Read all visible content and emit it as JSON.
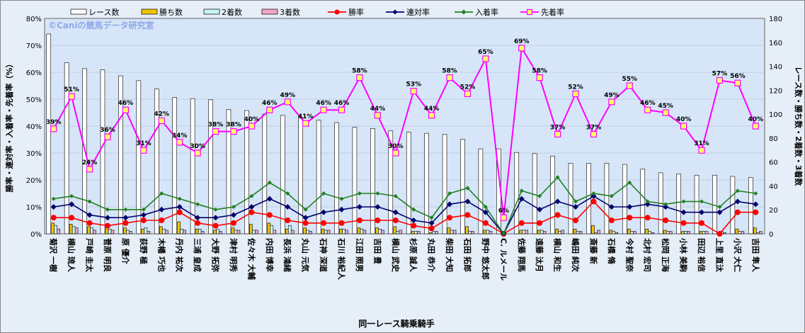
{
  "chart_data": {
    "type": "bar",
    "watermark": "©Caniの競馬データ研究室",
    "xlabel": "同一レース騎乗騎手",
    "ylabel_left": "勝率・連対率・入着率・先着率（%）",
    "ylabel_right": "レース数・勝ち数・2着数・3着数",
    "y_left_range": [
      0,
      80
    ],
    "y_left_ticks": [
      "0%",
      "10%",
      "20%",
      "30%",
      "40%",
      "50%",
      "60%",
      "70%",
      "80%"
    ],
    "y_right_range": [
      0,
      180
    ],
    "y_right_ticks": [
      "0",
      "20",
      "40",
      "60",
      "80",
      "100",
      "120",
      "140",
      "160",
      "180"
    ],
    "legend": [
      {
        "name": "レース数",
        "kind": "bar",
        "color": "#ffffff"
      },
      {
        "name": "勝ち数",
        "kind": "bar",
        "color": "#f2c400"
      },
      {
        "name": "2着数",
        "kind": "bar",
        "color": "#c8f4f4"
      },
      {
        "name": "3着数",
        "kind": "bar",
        "color": "#f4a6c8"
      },
      {
        "name": "勝率",
        "kind": "line",
        "color": "#ff0000"
      },
      {
        "name": "連対率",
        "kind": "line",
        "color": "#00006e"
      },
      {
        "name": "入着率",
        "kind": "line",
        "color": "#208020"
      },
      {
        "name": "先着率",
        "kind": "line",
        "color": "#ff00ff"
      }
    ],
    "categories": [
      "菊沢 一樹",
      "横山 琉人",
      "戸崎 圭太",
      "菅原 明良",
      "原 優介",
      "荻野 極",
      "木幡 巧也",
      "丹内 祐次",
      "三浦 皇成",
      "大野 拓弥",
      "津村 明秀",
      "佐々木 大輔",
      "内田 博幸",
      "長浜 鴻緒",
      "丸山 元気",
      "石神 深道",
      "石川 裕紀人",
      "江田 照男",
      "吉田 豊",
      "横山 武史",
      "杉原 誠人",
      "丸田 恭介",
      "柴田 大知",
      "石田 拓郎",
      "野中 悠太郎",
      "C. ルメール",
      "佐藤 翔馬",
      "遠藤 汰月",
      "横山 和生",
      "嶋田 純次",
      "斎藤 新",
      "石橋 脩",
      "今村 聖奈",
      "北村 宏司",
      "松岡 正海",
      "小林 美駒",
      "田辺 裕信",
      "上里 直汰",
      "小沢 大仁",
      "吉田 隼人"
    ],
    "bar_series": [
      {
        "name": "レース数",
        "values": [
          167,
          143,
          138,
          137,
          132,
          128,
          121,
          114,
          113,
          112,
          104,
          103,
          100,
          99,
          97,
          95,
          93,
          89,
          88,
          86,
          85,
          84,
          83,
          79,
          71,
          71,
          68,
          67,
          65,
          59,
          59,
          59,
          58,
          54,
          51,
          50,
          49,
          49,
          48,
          47
        ]
      },
      {
        "name": "勝ち数",
        "values": [
          9,
          8,
          6,
          5,
          5,
          4,
          6,
          10,
          4,
          3,
          5,
          8,
          9,
          4,
          5,
          4,
          4,
          5,
          5,
          6,
          2,
          1,
          5,
          6,
          3,
          0,
          3,
          3,
          4,
          4,
          7,
          3,
          4,
          4,
          3,
          2,
          2,
          0,
          4,
          5
        ]
      },
      {
        "name": "2着数",
        "values": [
          7,
          6,
          5,
          4,
          3,
          5,
          4,
          4,
          4,
          4,
          3,
          3,
          7,
          7,
          3,
          3,
          4,
          4,
          4,
          2,
          2,
          2,
          3,
          2,
          3,
          0,
          3,
          3,
          2,
          2,
          1,
          2,
          2,
          2,
          2,
          2,
          2,
          2,
          2,
          1
        ]
      },
      {
        "name": "3着数",
        "values": [
          4,
          5,
          3,
          3,
          2,
          2,
          3,
          3,
          2,
          2,
          3,
          3,
          3,
          3,
          2,
          3,
          3,
          3,
          3,
          3,
          2,
          2,
          3,
          2,
          2,
          0,
          3,
          2,
          3,
          2,
          3,
          1,
          2,
          1,
          2,
          2,
          2,
          1,
          2,
          2
        ]
      }
    ],
    "line_series": [
      {
        "name": "勝率",
        "values": [
          6,
          6,
          4,
          3,
          4,
          5,
          5,
          8,
          4,
          3,
          4,
          8,
          7,
          5,
          4,
          4,
          4,
          5,
          5,
          5,
          3,
          2,
          6,
          7,
          4,
          0,
          4,
          4,
          7,
          5,
          12,
          5,
          6,
          6,
          5,
          4,
          4,
          0,
          8,
          8
        ]
      },
      {
        "name": "連対率",
        "values": [
          10,
          11,
          7,
          6,
          6,
          7,
          9,
          10,
          6,
          6,
          7,
          10,
          13,
          10,
          6,
          8,
          9,
          10,
          10,
          8,
          5,
          4,
          11,
          12,
          8,
          0,
          13,
          9,
          12,
          10,
          14,
          10,
          10,
          11,
          10,
          8,
          8,
          8,
          12,
          11
        ]
      },
      {
        "name": "入着率",
        "values": [
          13,
          14,
          12,
          9,
          9,
          9,
          15,
          13,
          11,
          9,
          10,
          14,
          19,
          15,
          9,
          15,
          13,
          15,
          15,
          14,
          9,
          6,
          15,
          17,
          10,
          0,
          16,
          14,
          21,
          12,
          15,
          14,
          19,
          12,
          11,
          12,
          12,
          10,
          16,
          15
        ]
      },
      {
        "name": "先着率",
        "values": [
          39,
          51,
          24,
          36,
          46,
          31,
          42,
          34,
          30,
          38,
          38,
          40,
          46,
          49,
          41,
          46,
          46,
          58,
          44,
          30,
          53,
          44,
          58,
          52,
          65,
          6,
          69,
          58,
          37,
          52,
          37,
          49,
          55,
          46,
          45,
          40,
          31,
          57,
          56,
          40
        ]
      }
    ],
    "point_labels": [
      "39%",
      "51%",
      "24%",
      "36%",
      "46%",
      "31%",
      "42%",
      "34%",
      "30%",
      "38%",
      "38%",
      "40%",
      "46%",
      "49%",
      "41%",
      "46%",
      "46%",
      "58%",
      "44%",
      "30%",
      "53%",
      "44%",
      "58%",
      "52%",
      "65%",
      "6%",
      "69%",
      "58%",
      "37%",
      "52%",
      "37%",
      "49%",
      "55%",
      "46%",
      "45%",
      "40%",
      "31%",
      "57%",
      "56%",
      "40%"
    ]
  }
}
